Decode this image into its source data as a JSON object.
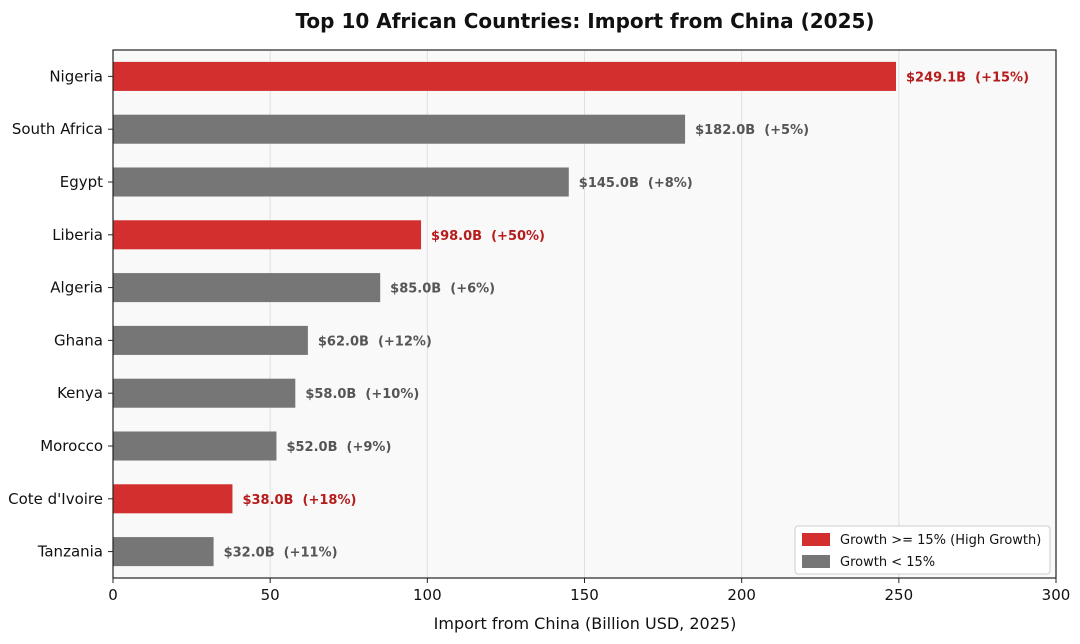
{
  "chart_data": {
    "type": "bar",
    "orientation": "horizontal",
    "title": "Top 10 African Countries: Import from China (2025)",
    "xlabel": "Import from China (Billion USD, 2025)",
    "ylabel": "",
    "xlim": [
      0,
      300
    ],
    "xticks": [
      0,
      50,
      100,
      150,
      200,
      250,
      300
    ],
    "grid": "vertical",
    "legend_position": "bottom-right",
    "colors": {
      "high": "#d32f2f",
      "low": "#767676",
      "high_label": "#b71c1c",
      "low_label": "#555555"
    },
    "categories": [
      "Nigeria",
      "South Africa",
      "Egypt",
      "Liberia",
      "Algeria",
      "Ghana",
      "Kenya",
      "Morocco",
      "Cote d'Ivoire",
      "Tanzania"
    ],
    "values": [
      249.1,
      182.0,
      145.0,
      98.0,
      85.0,
      62.0,
      58.0,
      52.0,
      38.0,
      32.0
    ],
    "growth_pct": [
      15,
      5,
      8,
      50,
      6,
      12,
      10,
      9,
      18,
      11
    ],
    "data_labels": [
      "$249.1B  (+15%)",
      "$182.0B  (+5%)",
      "$145.0B  (+8%)",
      "$98.0B  (+50%)",
      "$85.0B  (+6%)",
      "$62.0B  (+12%)",
      "$58.0B  (+10%)",
      "$52.0B  (+9%)",
      "$38.0B  (+18%)",
      "$32.0B  (+11%)"
    ],
    "series": [
      {
        "name": "Growth >= 15% (High Growth)",
        "color": "#d32f2f"
      },
      {
        "name": "Growth < 15%",
        "color": "#767676"
      }
    ]
  }
}
